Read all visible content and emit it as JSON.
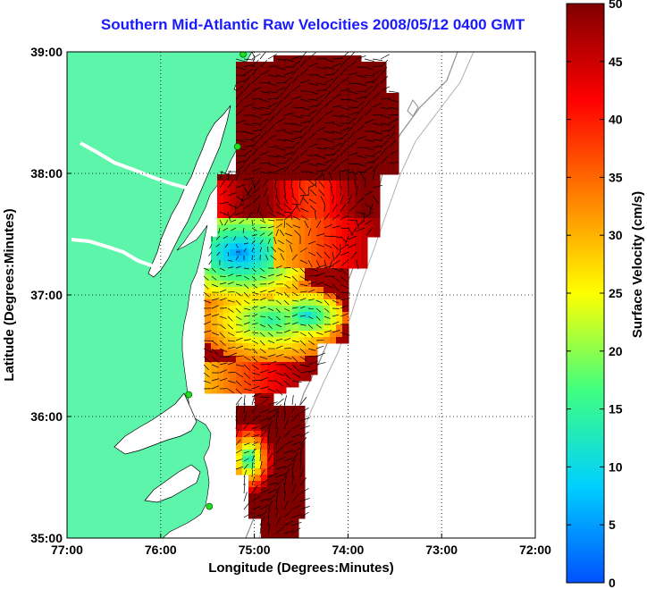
{
  "title": "Southern Mid-Atlantic Raw Velocities 2008/05/12 0400 GMT",
  "xlabel": "Longitude (Degrees:Minutes)",
  "ylabel": "Latitude (Degrees:Minutes)",
  "colorbar_label": "Surface Velocity (cm/s)",
  "x_ticks": [
    "77:00",
    "76:00",
    "75:00",
    "74:00",
    "73:00",
    "72:00"
  ],
  "y_ticks": [
    "39:00",
    "38:00",
    "37:00",
    "36:00",
    "35:00"
  ],
  "colorbar_ticks": [
    "50",
    "45",
    "40",
    "35",
    "30",
    "25",
    "20",
    "15",
    "10",
    "5",
    "0"
  ],
  "map": {
    "lon_range": [
      -77,
      -72
    ],
    "lat_range": [
      35,
      39
    ],
    "grid": "dotted",
    "land_color": "#5cf5a9",
    "station_color": "#22dd22",
    "stations": [
      {
        "lon": -75.12,
        "lat": 38.98
      },
      {
        "lon": -75.18,
        "lat": 38.22
      },
      {
        "lon": -75.7,
        "lat": 36.18
      },
      {
        "lon": -75.48,
        "lat": 35.26
      }
    ]
  },
  "colormap": {
    "min": 0,
    "max": 50,
    "stops": [
      "#0050ff",
      "#00d0ff",
      "#40ff80",
      "#ffff00",
      "#ff8000",
      "#ff0000",
      "#800000"
    ]
  }
}
